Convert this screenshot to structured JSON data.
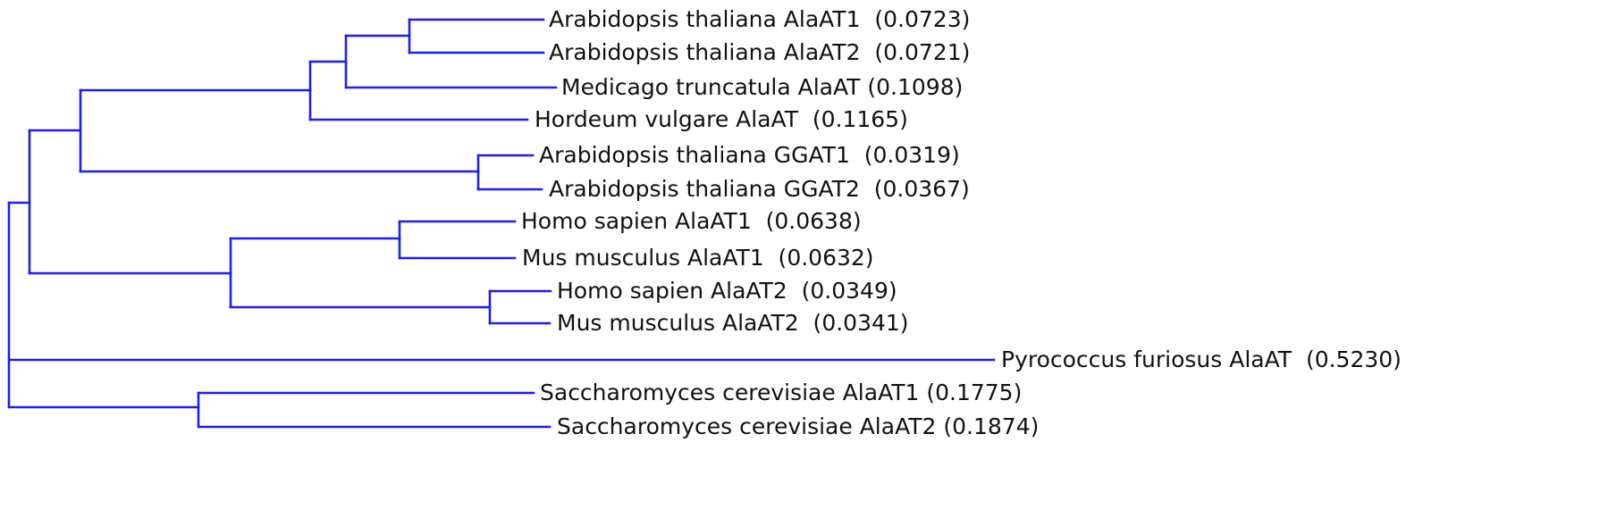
{
  "colors": {
    "branch": "#1f1fe6",
    "label": "#111111",
    "background": "#ffffff"
  },
  "tree": {
    "leaves": [
      {
        "id": "at_alaat1",
        "label": "Arabidopsis thaliana AlaAT1  (0.0723)"
      },
      {
        "id": "at_alaat2",
        "label": "Arabidopsis thaliana AlaAT2  (0.0721)"
      },
      {
        "id": "mt_alaat",
        "label": "Medicago truncatula AlaAT (0.1098)"
      },
      {
        "id": "hv_alaat",
        "label": "Hordeum vulgare AlaAT  (0.1165)"
      },
      {
        "id": "at_ggat1",
        "label": "Arabidopsis thaliana GGAT1  (0.0319)"
      },
      {
        "id": "at_ggat2",
        "label": "Arabidopsis thaliana GGAT2  (0.0367)"
      },
      {
        "id": "hs_alaat1",
        "label": "Homo sapien AlaAT1  (0.0638)"
      },
      {
        "id": "mm_alaat1",
        "label": "Mus musculus AlaAT1  (0.0632)"
      },
      {
        "id": "hs_alaat2",
        "label": "Homo sapien AlaAT2  (0.0349)"
      },
      {
        "id": "mm_alaat2",
        "label": "Mus musculus AlaAT2  (0.0341)"
      },
      {
        "id": "pf_alaat",
        "label": "Pyrococcus furiosus AlaAT  (0.5230)"
      },
      {
        "id": "sc_alaat1",
        "label": "Saccharomyces cerevisiae AlaAT1 (0.1775)"
      },
      {
        "id": "sc_alaat2",
        "label": "Saccharomyces cerevisiae AlaAT2 (0.1874)"
      }
    ]
  }
}
